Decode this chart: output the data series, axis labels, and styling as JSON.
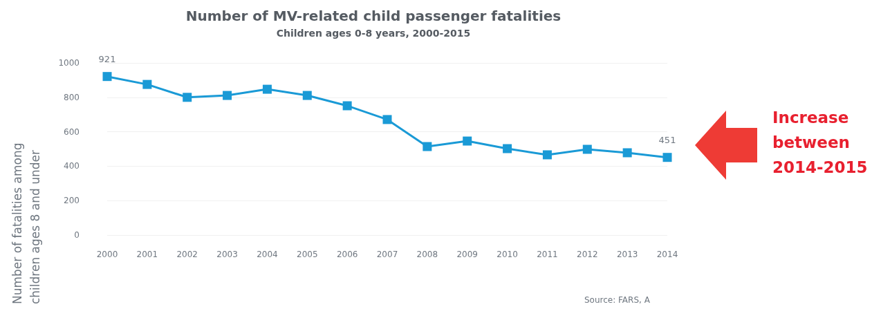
{
  "chart_data": {
    "type": "line",
    "title": "Number of MV-related child passenger fatalities",
    "subtitle": "Children ages 0-8 years, 2000-2015",
    "ylabel": "Number of fatalities among children ages 8 and under",
    "categories": [
      "2000",
      "2001",
      "2002",
      "2003",
      "2004",
      "2005",
      "2006",
      "2007",
      "2008",
      "2009",
      "2010",
      "2011",
      "2012",
      "2013",
      "2014"
    ],
    "series": [
      {
        "color": "#1a9ad6",
        "values": [
          921,
          875,
          800,
          811,
          847,
          811,
          751,
          671,
          514,
          546,
          502,
          466,
          498,
          478,
          451
        ],
        "value_labels": [
          "921",
          null,
          null,
          null,
          null,
          null,
          null,
          null,
          null,
          null,
          null,
          null,
          null,
          null,
          "451"
        ]
      }
    ],
    "ylim": [
      0,
      1000
    ],
    "yticks": [
      0,
      200,
      400,
      600,
      800,
      1000
    ],
    "grid": "y",
    "marker": "square",
    "line_style": "solid",
    "annotations": [
      "Increase between 2014-2015",
      "Source: FARS, A"
    ]
  }
}
